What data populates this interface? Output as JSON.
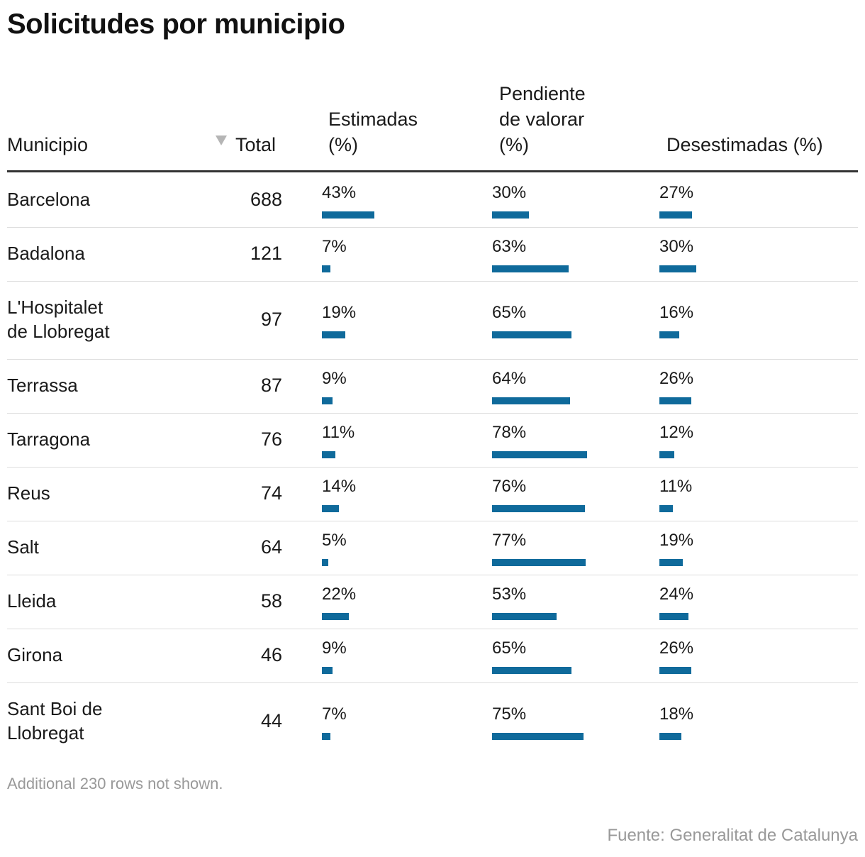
{
  "title": "Solicitudes por municipio",
  "headers": {
    "municipio": "Municipio",
    "total": "Total",
    "estimadas_1": "Estimadas",
    "estimadas_2": "(%)",
    "pendiente_1": "Pendiente",
    "pendiente_2": "de valorar",
    "pendiente_3": "(%)",
    "desestimadas": "Desestimadas (%)"
  },
  "sort_icon": "triangle-down-icon",
  "bar_color": "#0f6a9b",
  "footnote": "Additional 230 rows not shown.",
  "source": "Fuente: Generalitat de Catalunya",
  "chart_data": {
    "type": "table",
    "columns": [
      "Municipio",
      "Total",
      "Estimadas (%)",
      "Pendiente de valorar (%)",
      "Desestimadas (%)"
    ],
    "sorted_by": "Total",
    "sort_order": "descending",
    "rows": [
      {
        "name_lines": [
          "Barcelona"
        ],
        "total": "688",
        "estimadas": 43,
        "pendiente": 30,
        "desestimadas": 27
      },
      {
        "name_lines": [
          "Badalona"
        ],
        "total": "121",
        "estimadas": 7,
        "pendiente": 63,
        "desestimadas": 30
      },
      {
        "name_lines": [
          "L'Hospitalet",
          "de Llobregat"
        ],
        "total": "97",
        "estimadas": 19,
        "pendiente": 65,
        "desestimadas": 16
      },
      {
        "name_lines": [
          "Terrassa"
        ],
        "total": "87",
        "estimadas": 9,
        "pendiente": 64,
        "desestimadas": 26
      },
      {
        "name_lines": [
          "Tarragona"
        ],
        "total": "76",
        "estimadas": 11,
        "pendiente": 78,
        "desestimadas": 12
      },
      {
        "name_lines": [
          "Reus"
        ],
        "total": "74",
        "estimadas": 14,
        "pendiente": 76,
        "desestimadas": 11
      },
      {
        "name_lines": [
          "Salt"
        ],
        "total": "64",
        "estimadas": 5,
        "pendiente": 77,
        "desestimadas": 19
      },
      {
        "name_lines": [
          "Lleida"
        ],
        "total": "58",
        "estimadas": 22,
        "pendiente": 53,
        "desestimadas": 24
      },
      {
        "name_lines": [
          "Girona"
        ],
        "total": "46",
        "estimadas": 9,
        "pendiente": 65,
        "desestimadas": 26
      },
      {
        "name_lines": [
          "Sant Boi de",
          "Llobregat"
        ],
        "total": "44",
        "estimadas": 7,
        "pendiente": 75,
        "desestimadas": 18
      }
    ]
  }
}
